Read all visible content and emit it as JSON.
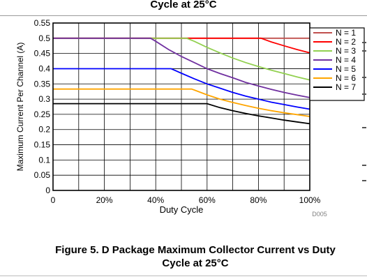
{
  "header": {
    "caption_top": "Cycle at 25°C"
  },
  "figure": {
    "caption_line1": "Figure 5. D Package Maximum Collector Current vs Duty",
    "caption_line2": "Cycle at 25°C",
    "code": "D005"
  },
  "chart_data": {
    "type": "line",
    "title": "",
    "xlabel": "Duty Cycle",
    "ylabel": "Maximum Current Per Channel (A)",
    "xlim": [
      0,
      100
    ],
    "ylim": [
      0,
      0.55
    ],
    "x_ticks": [
      0,
      20,
      40,
      60,
      80,
      100
    ],
    "x_tick_labels": [
      "0",
      "20%",
      "40%",
      "60%",
      "80%",
      "100%"
    ],
    "y_ticks": [
      0,
      0.05,
      0.1,
      0.15,
      0.2,
      0.25,
      0.3,
      0.35,
      0.4,
      0.45,
      0.5,
      0.55
    ],
    "y_tick_labels": [
      "0",
      "0.05",
      "0.1",
      "0.15",
      "0.2",
      "0.25",
      "0.3",
      "0.35",
      "0.4",
      "0.45",
      "0.5",
      "0.55"
    ],
    "grid": true,
    "legend_position": "right",
    "series": [
      {
        "name": "N = 1",
        "color": "#c0504d",
        "x": [
          0,
          100
        ],
        "y": [
          0.5,
          0.5
        ]
      },
      {
        "name": "N = 2",
        "color": "#ff0000",
        "x": [
          0,
          81,
          85,
          90,
          95,
          100
        ],
        "y": [
          0.5,
          0.5,
          0.488,
          0.475,
          0.463,
          0.452
        ]
      },
      {
        "name": "N = 3",
        "color": "#92d050",
        "x": [
          0,
          52,
          55,
          60,
          65,
          70,
          75,
          80,
          85,
          90,
          95,
          100
        ],
        "y": [
          0.5,
          0.5,
          0.49,
          0.47,
          0.452,
          0.435,
          0.42,
          0.407,
          0.395,
          0.384,
          0.373,
          0.363
        ]
      },
      {
        "name": "N = 4",
        "color": "#7030a0",
        "x": [
          0,
          38,
          40,
          45,
          50,
          55,
          60,
          65,
          70,
          75,
          80,
          85,
          90,
          95,
          100
        ],
        "y": [
          0.5,
          0.5,
          0.49,
          0.463,
          0.44,
          0.42,
          0.4,
          0.384,
          0.37,
          0.355,
          0.343,
          0.332,
          0.322,
          0.313,
          0.305
        ]
      },
      {
        "name": "N = 5",
        "color": "#0000ff",
        "x": [
          0,
          46,
          50,
          55,
          60,
          65,
          70,
          75,
          80,
          85,
          90,
          95,
          100
        ],
        "y": [
          0.4,
          0.4,
          0.385,
          0.367,
          0.35,
          0.336,
          0.322,
          0.31,
          0.3,
          0.29,
          0.282,
          0.274,
          0.267
        ]
      },
      {
        "name": "N = 6",
        "color": "#ffa500",
        "x": [
          0,
          54,
          55,
          60,
          65,
          70,
          75,
          80,
          85,
          90,
          95,
          100
        ],
        "y": [
          0.333,
          0.333,
          0.33,
          0.314,
          0.3,
          0.289,
          0.279,
          0.27,
          0.262,
          0.255,
          0.249,
          0.243
        ]
      },
      {
        "name": "N = 7",
        "color": "#000000",
        "x": [
          0,
          60,
          65,
          70,
          75,
          80,
          85,
          90,
          95,
          100
        ],
        "y": [
          0.285,
          0.285,
          0.272,
          0.262,
          0.253,
          0.245,
          0.238,
          0.231,
          0.225,
          0.219
        ]
      }
    ]
  }
}
